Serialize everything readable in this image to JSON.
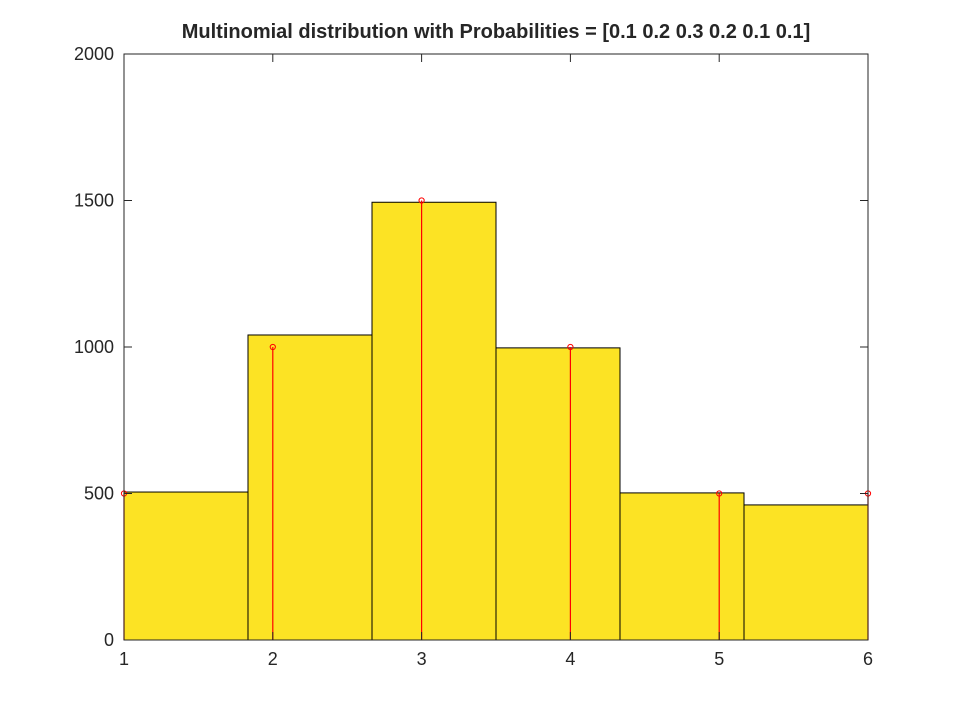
{
  "chart_data": {
    "type": "bar",
    "title": "Multinomial distribution with Probabilities = [0.1 0.2 0.3 0.2 0.1 0.1]",
    "xlabel": "",
    "ylabel": "",
    "xlim": [
      1,
      6
    ],
    "ylim": [
      0,
      2000
    ],
    "xticks": [
      1,
      2,
      3,
      4,
      5,
      6
    ],
    "yticks": [
      0,
      500,
      1000,
      1500,
      2000
    ],
    "grid": false,
    "histogram": {
      "bin_edges": [
        1,
        1.8333,
        2.6667,
        3.5,
        4.3333,
        5.1667,
        6
      ],
      "counts": [
        505,
        1041,
        1494,
        997,
        502,
        461
      ],
      "face_color": "#fce324",
      "edge_color": "#000000"
    },
    "stems": {
      "x": [
        1,
        2,
        3,
        4,
        5,
        6
      ],
      "y": [
        500,
        1000,
        1500,
        1000,
        500,
        500
      ],
      "color": "#ff0000",
      "marker": "circle"
    }
  }
}
